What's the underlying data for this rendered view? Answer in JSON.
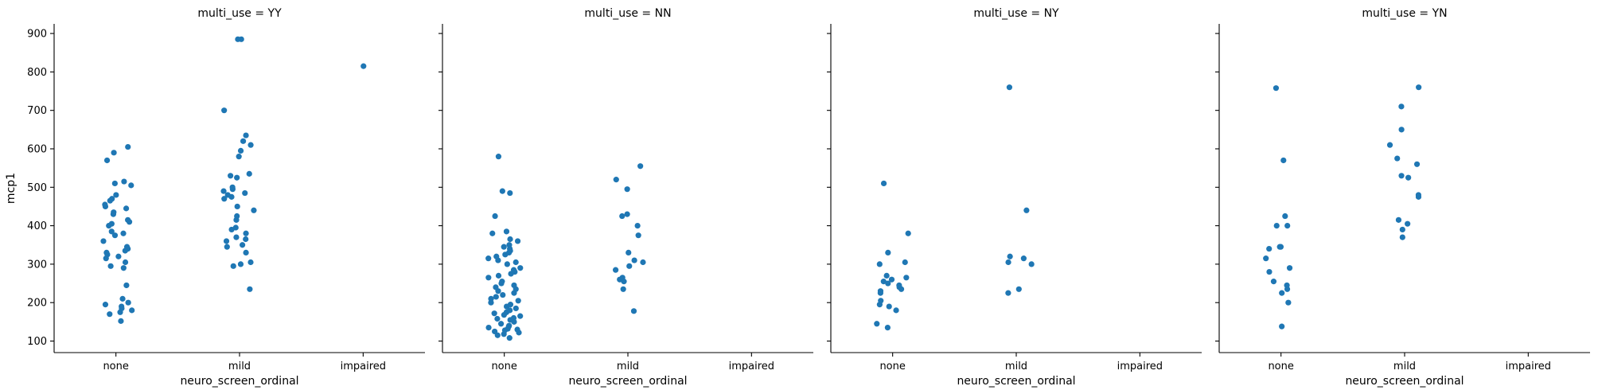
{
  "figure": {
    "ylabel": "mcp1",
    "xlabel": "neuro_screen_ordinal",
    "point_color": "#1f77b4"
  },
  "chart_data": [
    {
      "type": "scatter",
      "title": "multi_use = YY",
      "categories": [
        "none",
        "mild",
        "impaired"
      ],
      "xlabel": "neuro_screen_ordinal",
      "ylabel": "mcp1",
      "ylim": [
        70,
        925
      ],
      "yticks": [
        100,
        200,
        300,
        400,
        500,
        600,
        700,
        800,
        900
      ],
      "points": {
        "none": [
          152,
          170,
          175,
          180,
          185,
          190,
          195,
          200,
          210,
          245,
          290,
          295,
          305,
          315,
          320,
          325,
          330,
          335,
          340,
          345,
          360,
          375,
          380,
          385,
          400,
          405,
          410,
          415,
          430,
          435,
          445,
          450,
          455,
          465,
          470,
          480,
          505,
          510,
          515,
          570,
          590,
          605
        ],
        "mild": [
          235,
          295,
          300,
          305,
          330,
          345,
          350,
          360,
          365,
          370,
          380,
          390,
          395,
          415,
          425,
          440,
          450,
          470,
          475,
          480,
          485,
          490,
          495,
          500,
          525,
          530,
          535,
          580,
          595,
          610,
          620,
          635,
          700,
          885,
          885
        ],
        "impaired": [
          815
        ]
      }
    },
    {
      "type": "scatter",
      "title": "multi_use = NN",
      "categories": [
        "none",
        "mild",
        "impaired"
      ],
      "xlabel": "neuro_screen_ordinal",
      "ylabel": "",
      "ylim": [
        70,
        925
      ],
      "yticks": [
        100,
        200,
        300,
        400,
        500,
        600,
        700,
        800,
        900
      ],
      "points": {
        "none": [
          108,
          115,
          118,
          122,
          125,
          128,
          130,
          132,
          135,
          138,
          140,
          145,
          150,
          155,
          158,
          160,
          165,
          168,
          172,
          175,
          180,
          185,
          190,
          195,
          200,
          205,
          210,
          215,
          220,
          225,
          230,
          235,
          240,
          245,
          250,
          255,
          265,
          270,
          275,
          280,
          285,
          290,
          300,
          305,
          310,
          315,
          320,
          325,
          330,
          335,
          340,
          345,
          350,
          360,
          365,
          380,
          385,
          425,
          485,
          490,
          580
        ],
        "mild": [
          178,
          235,
          255,
          260,
          265,
          285,
          295,
          305,
          310,
          330,
          375,
          400,
          425,
          430,
          495,
          520,
          555
        ],
        "impaired": []
      }
    },
    {
      "type": "scatter",
      "title": "multi_use = NY",
      "categories": [
        "none",
        "mild",
        "impaired"
      ],
      "xlabel": "neuro_screen_ordinal",
      "ylabel": "",
      "ylim": [
        70,
        925
      ],
      "yticks": [
        100,
        200,
        300,
        400,
        500,
        600,
        700,
        800,
        900
      ],
      "points": {
        "none": [
          135,
          145,
          180,
          190,
          195,
          205,
          225,
          230,
          235,
          240,
          245,
          250,
          255,
          260,
          265,
          270,
          300,
          305,
          330,
          380,
          510
        ],
        "mild": [
          225,
          235,
          300,
          305,
          315,
          320,
          440,
          760
        ],
        "impaired": []
      }
    },
    {
      "type": "scatter",
      "title": "multi_use = YN",
      "categories": [
        "none",
        "mild",
        "impaired"
      ],
      "xlabel": "neuro_screen_ordinal",
      "ylabel": "",
      "ylim": [
        70,
        925
      ],
      "yticks": [
        100,
        200,
        300,
        400,
        500,
        600,
        700,
        800,
        900
      ],
      "points": {
        "none": [
          138,
          200,
          225,
          235,
          245,
          255,
          280,
          290,
          315,
          340,
          345,
          345,
          400,
          400,
          425,
          570,
          758
        ],
        "mild": [
          370,
          390,
          405,
          415,
          475,
          480,
          525,
          530,
          560,
          575,
          610,
          650,
          710,
          760
        ],
        "impaired": []
      }
    }
  ]
}
